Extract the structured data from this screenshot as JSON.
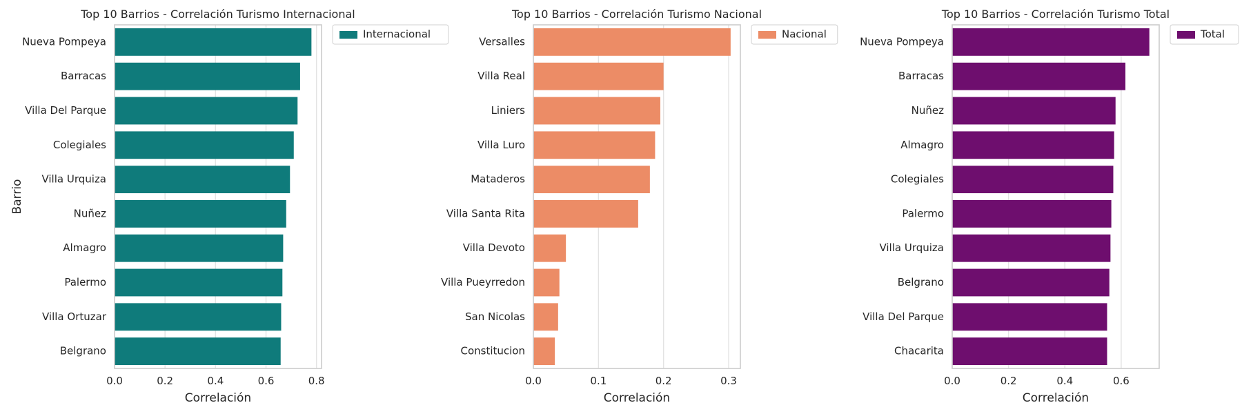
{
  "chart_data": [
    {
      "type": "bar",
      "orientation": "horizontal",
      "title": "Top 10 Barrios - Correlación Turismo Internacional",
      "xlabel": "Correlación",
      "ylabel": "Barrio",
      "xlim": [
        0,
        0.82
      ],
      "xticks": [
        0.0,
        0.2,
        0.4,
        0.6,
        0.8
      ],
      "xtick_labels": [
        "0.0",
        "0.2",
        "0.4",
        "0.6",
        "0.8"
      ],
      "grid": true,
      "legend_position": "outside-top-right",
      "color": "#0f7b7b",
      "categories": [
        "Nueva Pompeya",
        "Barracas",
        "Villa Del Parque",
        "Colegiales",
        "Villa Urquiza",
        "Nuñez",
        "Almagro",
        "Palermo",
        "Villa Ortuzar",
        "Belgrano"
      ],
      "series": [
        {
          "name": "Internacional",
          "values": [
            0.78,
            0.735,
            0.725,
            0.71,
            0.695,
            0.68,
            0.668,
            0.665,
            0.66,
            0.658
          ]
        }
      ]
    },
    {
      "type": "bar",
      "orientation": "horizontal",
      "title": "Top 10 Barrios - Correlación Turismo Nacional",
      "xlabel": "Correlación",
      "ylabel": "",
      "xlim": [
        0,
        0.318
      ],
      "xticks": [
        0.0,
        0.1,
        0.2,
        0.3
      ],
      "xtick_labels": [
        "0.0",
        "0.1",
        "0.2",
        "0.3"
      ],
      "grid": true,
      "legend_position": "outside-top-right",
      "color": "#ec8c66",
      "categories": [
        "Versalles",
        "Villa Real",
        "Liniers",
        "Villa Luro",
        "Mataderos",
        "Villa Santa Rita",
        "Villa Devoto",
        "Villa Pueyrredon",
        "San Nicolas",
        "Constitucion"
      ],
      "series": [
        {
          "name": "Nacional",
          "values": [
            0.303,
            0.2,
            0.195,
            0.187,
            0.179,
            0.161,
            0.05,
            0.04,
            0.038,
            0.033
          ]
        }
      ]
    },
    {
      "type": "bar",
      "orientation": "horizontal",
      "title": "Top 10 Barrios - Correlación Turismo Total",
      "xlabel": "Correlación",
      "ylabel": "",
      "xlim": [
        0,
        0.735
      ],
      "xticks": [
        0.0,
        0.2,
        0.4,
        0.6
      ],
      "xtick_labels": [
        "0.0",
        "0.2",
        "0.4",
        "0.6"
      ],
      "grid": true,
      "legend_position": "outside-top-right",
      "color": "#6e0e6e",
      "categories": [
        "Nueva Pompeya",
        "Barracas",
        "Nuñez",
        "Almagro",
        "Colegiales",
        "Palermo",
        "Villa Urquiza",
        "Belgrano",
        "Villa Del Parque",
        "Chacarita"
      ],
      "series": [
        {
          "name": "Total",
          "values": [
            0.7,
            0.615,
            0.58,
            0.575,
            0.572,
            0.565,
            0.562,
            0.558,
            0.55,
            0.55
          ]
        }
      ]
    }
  ]
}
